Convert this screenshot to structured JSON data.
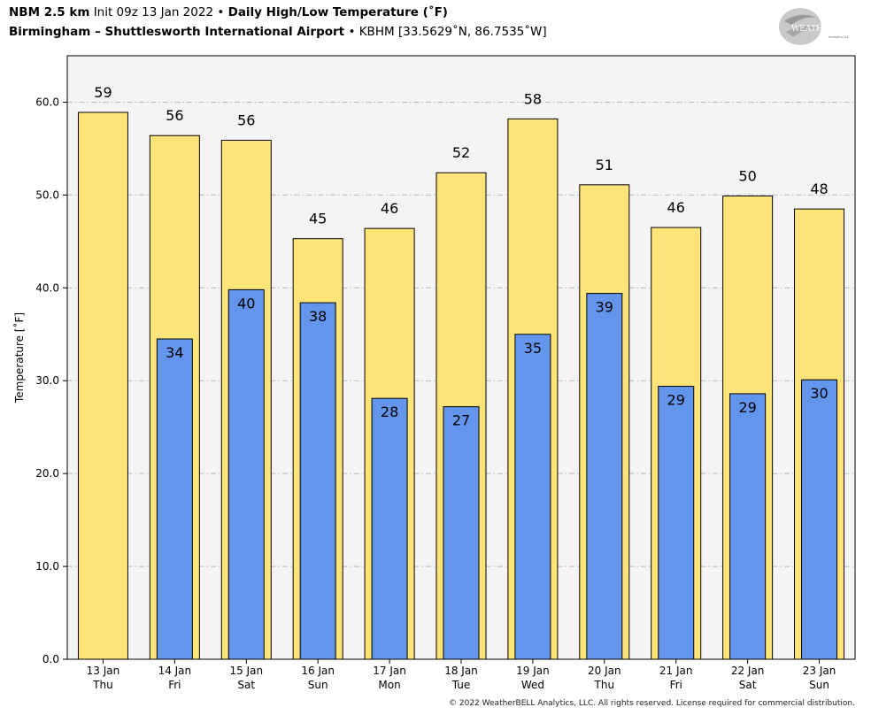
{
  "header": {
    "model": "NBM 2.5 km",
    "init": "Init 09z 13 Jan 2022",
    "bullet": "•",
    "product": "Daily High/Low Temperature (˚F)",
    "location": "Birmingham – Shuttlesworth International Airport",
    "station": "KBHM [33.5629˚N, 86.7535˚W]"
  },
  "logo": {
    "text": "WEATHERBELL",
    "sub": "Analytics LLC"
  },
  "copyright": "© 2022 WeatherBELL Analytics, LLC. All rights reserved. License required for commercial distribution.",
  "chart_data": {
    "type": "bar",
    "title": "Daily High/Low Temperature (˚F)",
    "xlabel": "",
    "ylabel": "Temperature [˚F]",
    "ylim": [
      0,
      65
    ],
    "yticks": [
      "0.0",
      "10.0",
      "20.0",
      "30.0",
      "40.0",
      "50.0",
      "60.0"
    ],
    "grid": true,
    "categories": [
      [
        "13 Jan",
        "Thu"
      ],
      [
        "14 Jan",
        "Fri"
      ],
      [
        "15 Jan",
        "Sat"
      ],
      [
        "16 Jan",
        "Sun"
      ],
      [
        "17 Jan",
        "Mon"
      ],
      [
        "18 Jan",
        "Tue"
      ],
      [
        "19 Jan",
        "Wed"
      ],
      [
        "20 Jan",
        "Thu"
      ],
      [
        "21 Jan",
        "Fri"
      ],
      [
        "22 Jan",
        "Sat"
      ],
      [
        "23 Jan",
        "Sun"
      ]
    ],
    "series": [
      {
        "key": "high",
        "color": "#ffe47a",
        "values": [
          58.9,
          56.4,
          55.9,
          45.3,
          46.4,
          52.4,
          58.2,
          51.1,
          46.5,
          49.9,
          48.5
        ],
        "labels": [
          "59",
          "56",
          "56",
          "45",
          "46",
          "52",
          "58",
          "51",
          "46",
          "50",
          "48"
        ]
      },
      {
        "key": "low",
        "color": "#6495ed",
        "values": [
          null,
          34.5,
          39.8,
          38.4,
          28.1,
          27.2,
          35.0,
          39.4,
          29.4,
          28.6,
          30.1
        ],
        "labels": [
          "",
          "34",
          "40",
          "38",
          "28",
          "27",
          "35",
          "39",
          "29",
          "29",
          "30"
        ]
      }
    ]
  }
}
